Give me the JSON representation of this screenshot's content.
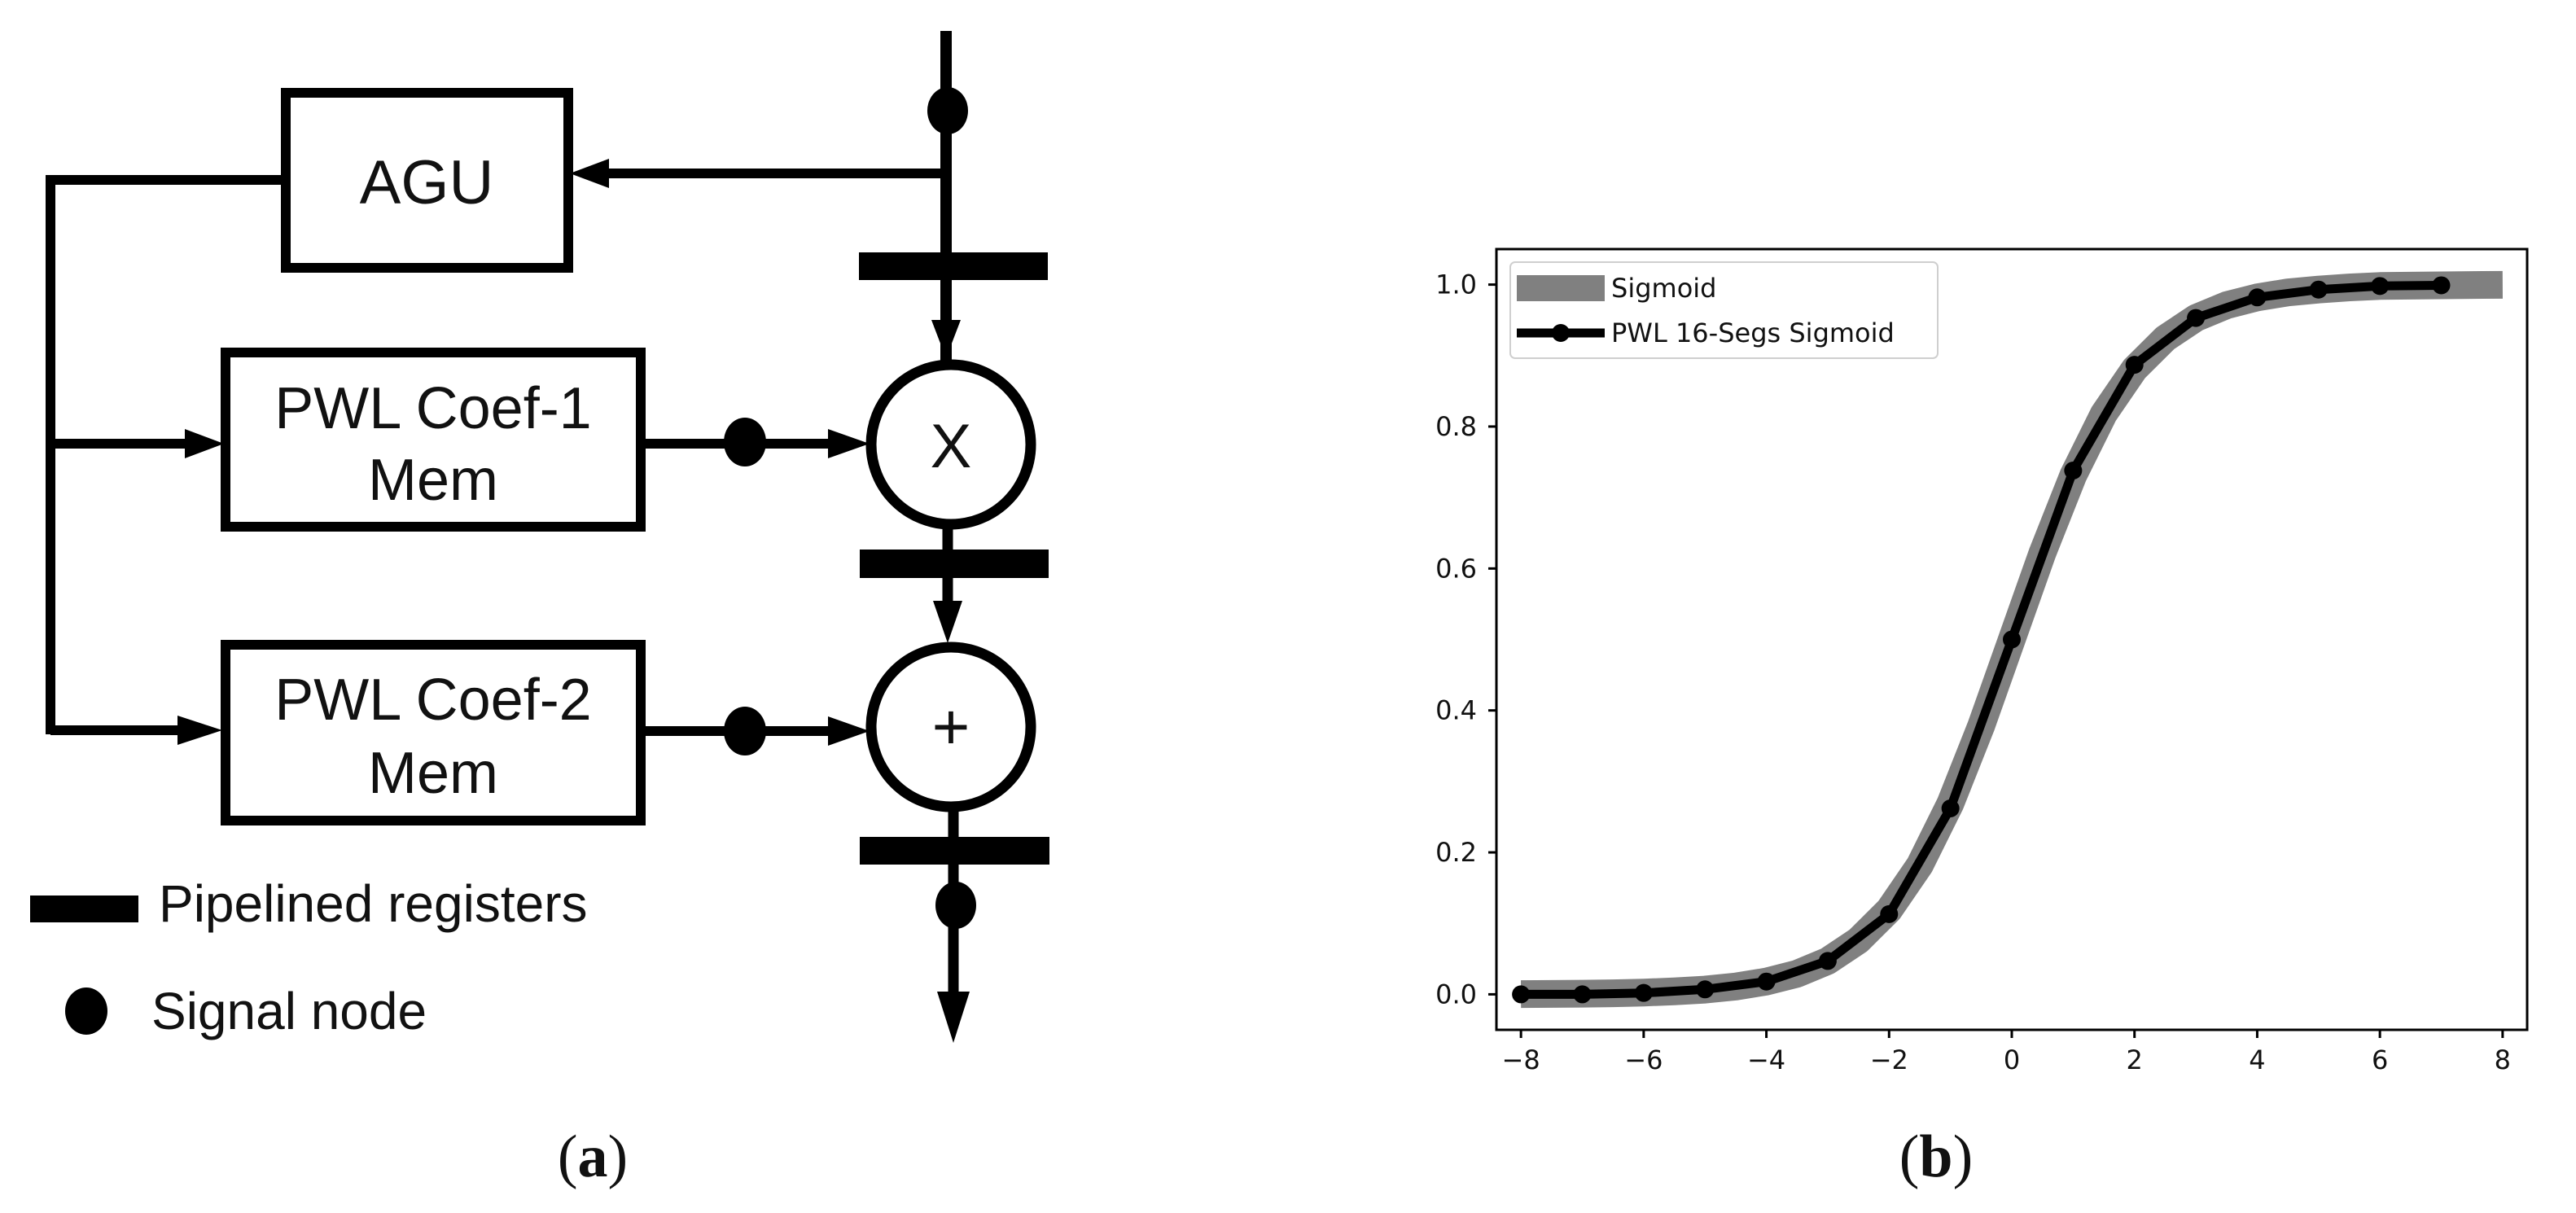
{
  "panel_a": {
    "caption_letter": "a",
    "blocks": {
      "agu": "AGU",
      "coef1_line1": "PWL Coef-1",
      "coef1_line2": "Mem",
      "coef2_line1": "PWL Coef-2",
      "coef2_line2": "Mem"
    },
    "operators": {
      "multiply": "X",
      "add": "+"
    },
    "legend": {
      "registers": "Pipelined registers",
      "signal_node": "Signal node"
    }
  },
  "panel_b": {
    "caption_letter": "b"
  },
  "chart_data": {
    "type": "line",
    "title": "",
    "xlabel": "",
    "ylabel": "",
    "xlim": [
      -8.4,
      8.4
    ],
    "ylim": [
      -0.05,
      1.05
    ],
    "xticks": [
      -8,
      -6,
      -4,
      -2,
      0,
      2,
      4,
      6,
      8
    ],
    "xtick_labels": [
      "−8",
      "−6",
      "−4",
      "−2",
      "0",
      "2",
      "4",
      "6",
      "8"
    ],
    "yticks": [
      0.0,
      0.2,
      0.4,
      0.6,
      0.8,
      1.0
    ],
    "ytick_labels": [
      "0.0",
      "0.2",
      "0.4",
      "0.6",
      "0.8",
      "1.0"
    ],
    "legend_position": "top-left",
    "series": [
      {
        "name": "Sigmoid",
        "style": "thick-line",
        "color": "#808080",
        "x": [
          -8,
          -7.5,
          -7,
          -6.5,
          -6,
          -5.5,
          -5,
          -4.5,
          -4,
          -3.5,
          -3,
          -2.5,
          -2,
          -1.5,
          -1,
          -0.5,
          0,
          0.5,
          1,
          1.5,
          2,
          2.5,
          3,
          3.5,
          4,
          4.5,
          5,
          5.5,
          6,
          6.5,
          7,
          7.5,
          8
        ],
        "y": [
          0.0003,
          0.0006,
          0.0009,
          0.0015,
          0.0025,
          0.0041,
          0.0067,
          0.011,
          0.018,
          0.029,
          0.047,
          0.076,
          0.119,
          0.182,
          0.269,
          0.378,
          0.5,
          0.622,
          0.731,
          0.818,
          0.881,
          0.924,
          0.953,
          0.971,
          0.982,
          0.989,
          0.993,
          0.996,
          0.998,
          0.9985,
          0.999,
          0.9994,
          0.9997
        ]
      },
      {
        "name": "PWL 16-Segs Sigmoid",
        "style": "line-with-markers",
        "color": "#000000",
        "x": [
          -8,
          -7,
          -6,
          -5,
          -4,
          -3,
          -2,
          -1,
          0,
          1,
          2,
          3,
          4,
          5,
          6,
          7
        ],
        "y": [
          0.0,
          0.0,
          0.002,
          0.007,
          0.018,
          0.047,
          0.113,
          0.262,
          0.5,
          0.738,
          0.887,
          0.953,
          0.982,
          0.993,
          0.998,
          0.999
        ]
      }
    ],
    "colors": {
      "sigmoid": "#808080",
      "pwl": "#000000"
    }
  }
}
